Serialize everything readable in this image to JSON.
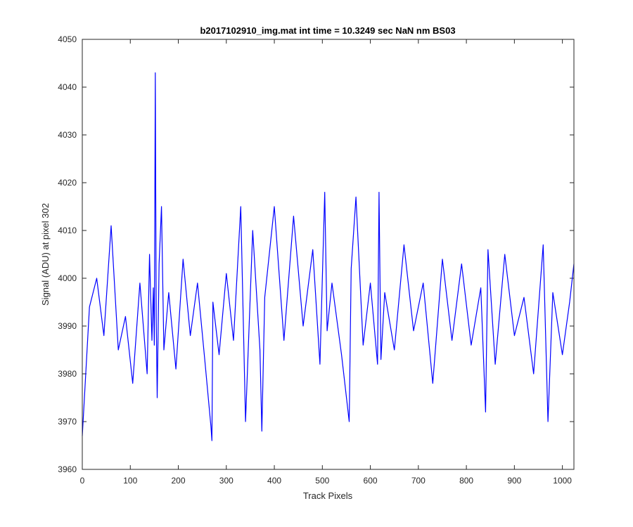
{
  "chart_data": {
    "type": "line",
    "title": "b2017102910_img.mat int time = 10.3249 sec  NaN nm BS03",
    "xlabel": "Track Pixels",
    "ylabel": "Signal (ADU) at pixel 302",
    "xlim": [
      0,
      1024
    ],
    "ylim": [
      3960,
      4050
    ],
    "xticks": [
      0,
      100,
      200,
      300,
      400,
      500,
      600,
      700,
      800,
      900,
      1000
    ],
    "yticks": [
      3960,
      3970,
      3980,
      3990,
      4000,
      4010,
      4020,
      4030,
      4040,
      4050
    ],
    "grid": false,
    "legend": "none",
    "series": [
      {
        "color": "#0000ff",
        "x": [
          0,
          15,
          30,
          45,
          60,
          75,
          90,
          105,
          120,
          135,
          140,
          145,
          148,
          150,
          152,
          154,
          156,
          160,
          165,
          170,
          180,
          195,
          210,
          225,
          240,
          255,
          268,
          270,
          272,
          285,
          300,
          315,
          330,
          340,
          355,
          370,
          374,
          380,
          400,
          420,
          440,
          460,
          480,
          495,
          505,
          510,
          520,
          540,
          556,
          560,
          570,
          585,
          600,
          615,
          618,
          622,
          630,
          650,
          670,
          690,
          710,
          730,
          750,
          770,
          790,
          810,
          830,
          840,
          845,
          860,
          880,
          900,
          920,
          940,
          960,
          970,
          980,
          1000,
          1015,
          1024
        ],
        "values": [
          3967,
          3994,
          4000,
          3988,
          4011,
          3985,
          3992,
          3978,
          3999,
          3980,
          4005,
          3987,
          3998,
          3986,
          4043,
          3992,
          3975,
          4003,
          4015,
          3985,
          3997,
          3981,
          4004,
          3988,
          3999,
          3983,
          3969,
          3966,
          3995,
          3984,
          4001,
          3987,
          4015,
          3970,
          4010,
          3985,
          3968,
          3996,
          4015,
          3987,
          4013,
          3990,
          4006,
          3982,
          4018,
          3989,
          3999,
          3984,
          3970,
          4002,
          4017,
          3986,
          3999,
          3982,
          4018,
          3983,
          3997,
          3985,
          4007,
          3989,
          3999,
          3978,
          4004,
          3987,
          4003,
          3986,
          3998,
          3972,
          4006,
          3982,
          4005,
          3988,
          3996,
          3980,
          4007,
          3970,
          3997,
          3984,
          3995,
          4003
        ]
      }
    ]
  }
}
